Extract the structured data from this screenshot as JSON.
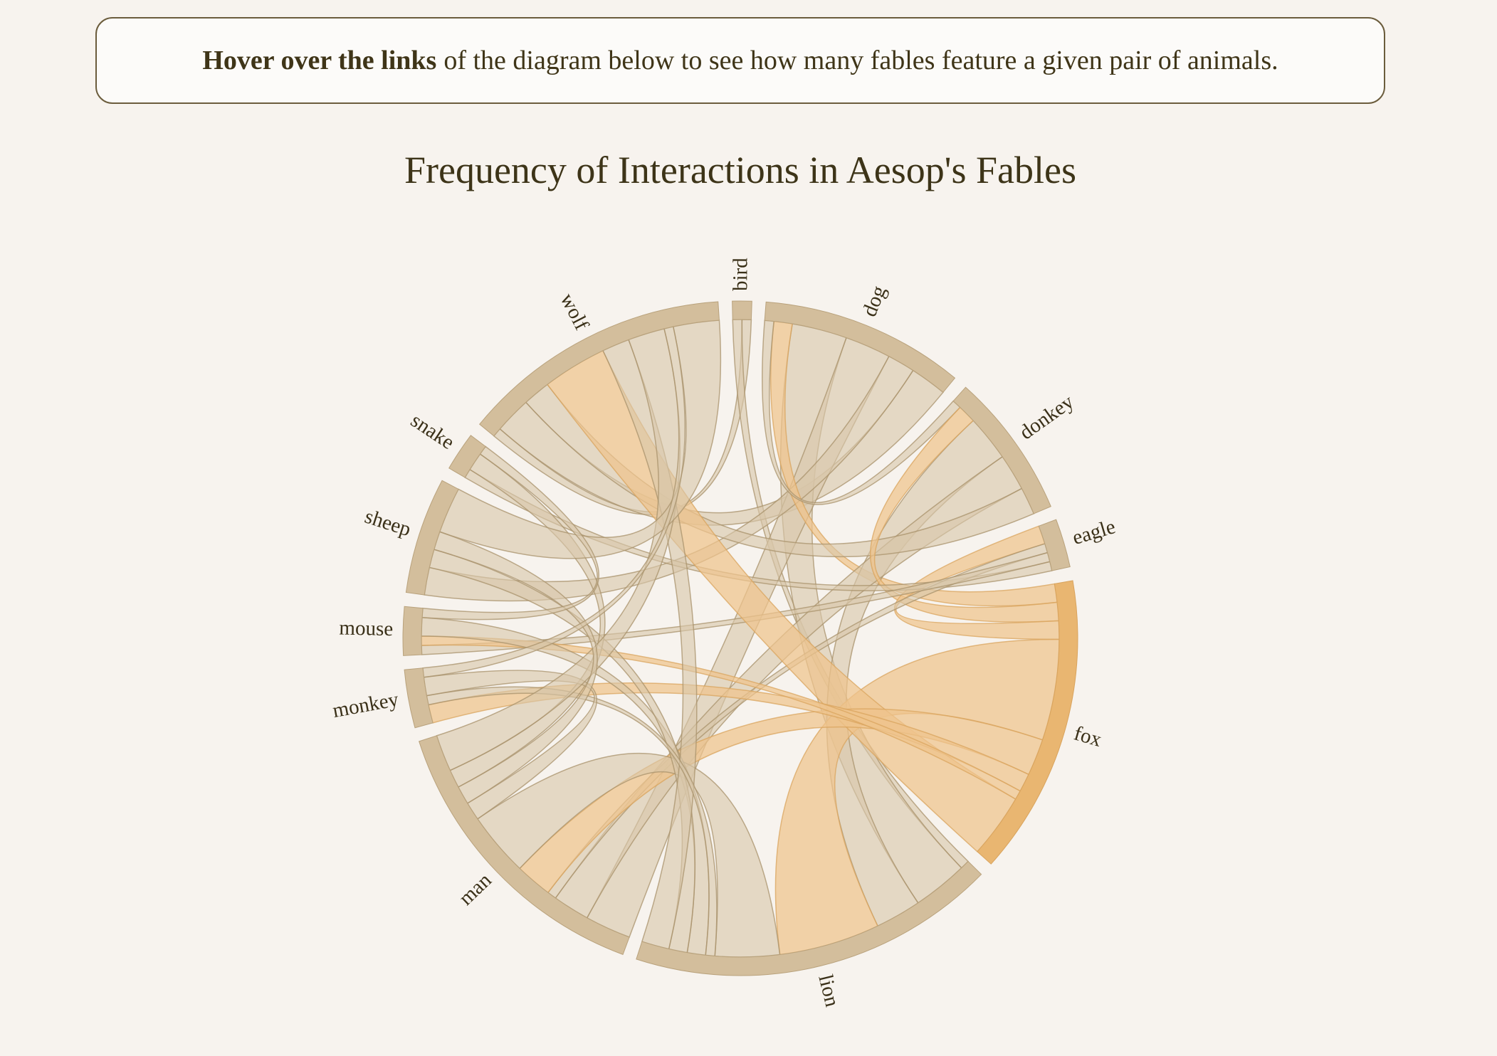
{
  "hint": {
    "bold": "Hover over the links",
    "rest": "of the diagram below to see how many fables feature a given pair of animals."
  },
  "chart_data": {
    "type": "chord",
    "title": "Frequency of Interactions in Aesop's Fables",
    "groups": [
      "bird",
      "dog",
      "donkey",
      "eagle",
      "fox",
      "lion",
      "man",
      "monkey",
      "mouse",
      "sheep",
      "snake",
      "wolf"
    ],
    "highlight_group": "fox",
    "links": [
      {
        "source": "bird",
        "target": "wolf",
        "value": 1
      },
      {
        "source": "bird",
        "target": "lion",
        "value": 1
      },
      {
        "source": "dog",
        "target": "wolf",
        "value": 4
      },
      {
        "source": "dog",
        "target": "lion",
        "value": 6
      },
      {
        "source": "dog",
        "target": "man",
        "value": 5
      },
      {
        "source": "dog",
        "target": "sheep",
        "value": 3
      },
      {
        "source": "dog",
        "target": "fox",
        "value": 2
      },
      {
        "source": "dog",
        "target": "donkey",
        "value": 1
      },
      {
        "source": "donkey",
        "target": "lion",
        "value": 5
      },
      {
        "source": "donkey",
        "target": "man",
        "value": 4
      },
      {
        "source": "donkey",
        "target": "wolf",
        "value": 3
      },
      {
        "source": "donkey",
        "target": "fox",
        "value": 2
      },
      {
        "source": "eagle",
        "target": "fox",
        "value": 2
      },
      {
        "source": "eagle",
        "target": "snake",
        "value": 1
      },
      {
        "source": "eagle",
        "target": "man",
        "value": 1
      },
      {
        "source": "eagle",
        "target": "mouse",
        "value": 1
      },
      {
        "source": "fox",
        "target": "lion",
        "value": 11
      },
      {
        "source": "fox",
        "target": "wolf",
        "value": 7
      },
      {
        "source": "fox",
        "target": "man",
        "value": 4
      },
      {
        "source": "fox",
        "target": "monkey",
        "value": 2
      },
      {
        "source": "fox",
        "target": "mouse",
        "value": 1
      },
      {
        "source": "lion",
        "target": "man",
        "value": 7
      },
      {
        "source": "lion",
        "target": "mouse",
        "value": 2
      },
      {
        "source": "lion",
        "target": "sheep",
        "value": 2
      },
      {
        "source": "lion",
        "target": "wolf",
        "value": 3
      },
      {
        "source": "lion",
        "target": "monkey",
        "value": 1
      },
      {
        "source": "man",
        "target": "snake",
        "value": 2
      },
      {
        "source": "man",
        "target": "monkey",
        "value": 2
      },
      {
        "source": "man",
        "target": "wolf",
        "value": 4
      },
      {
        "source": "man",
        "target": "sheep",
        "value": 2
      },
      {
        "source": "sheep",
        "target": "wolf",
        "value": 5
      },
      {
        "source": "snake",
        "target": "mouse",
        "value": 1
      },
      {
        "source": "monkey",
        "target": "wolf",
        "value": 1
      }
    ]
  },
  "colors": {
    "group": "#d3be9c",
    "group_stroke": "#b9a27c",
    "ribbon": "#d8c7a9",
    "ribbon_stroke": "#a8916b",
    "highlight_group": "#e9b671",
    "highlight_ribbon": "#eec48c",
    "highlight_stroke": "#d9a45e"
  }
}
